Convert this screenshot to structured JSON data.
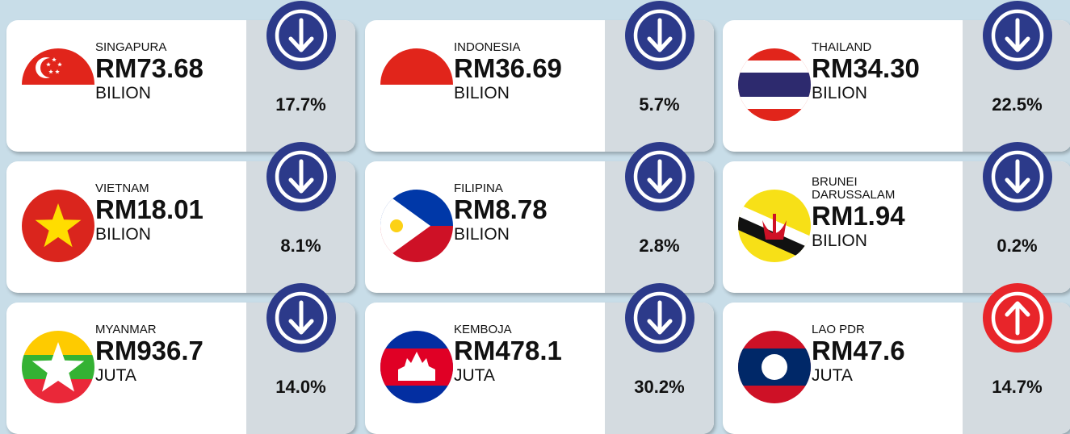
{
  "cards": [
    {
      "country": "SINGAPURA",
      "value": "RM73.68",
      "unit": "BILION",
      "change": "17.7%",
      "direction": "down"
    },
    {
      "country": "INDONESIA",
      "value": "RM36.69",
      "unit": "BILION",
      "change": "5.7%",
      "direction": "down"
    },
    {
      "country": "THAILAND",
      "value": "RM34.30",
      "unit": "BILION",
      "change": "22.5%",
      "direction": "down"
    },
    {
      "country": "VIETNAM",
      "value": "RM18.01",
      "unit": "BILION",
      "change": "8.1%",
      "direction": "down"
    },
    {
      "country": "FILIPINA",
      "value": "RM8.78",
      "unit": "BILION",
      "change": "2.8%",
      "direction": "down"
    },
    {
      "country": "BRUNEI DARUSSALAM",
      "value": "RM1.94",
      "unit": "BILION",
      "change": "0.2%",
      "direction": "down"
    },
    {
      "country": "MYANMAR",
      "value": "RM936.7",
      "unit": "JUTA",
      "change": "14.0%",
      "direction": "down"
    },
    {
      "country": "KEMBOJA",
      "value": "RM478.1",
      "unit": "JUTA",
      "change": "30.2%",
      "direction": "down"
    },
    {
      "country": "LAO PDR",
      "value": "RM47.6",
      "unit": "JUTA",
      "change": "14.7%",
      "direction": "up"
    }
  ]
}
